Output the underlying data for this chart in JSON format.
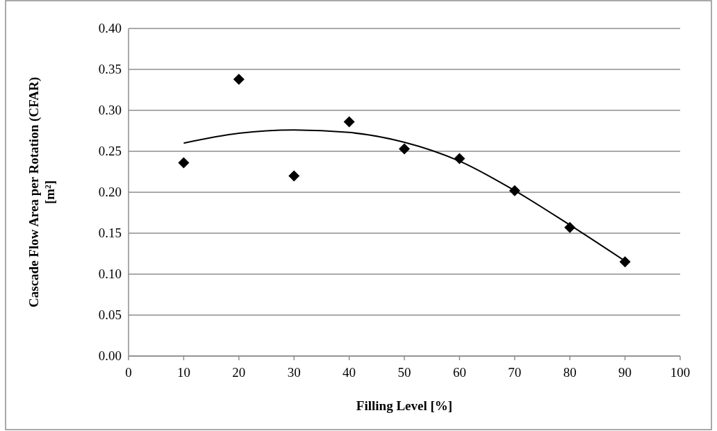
{
  "chart_data": {
    "type": "scatter",
    "xlabel": "Filling Level [%]",
    "ylabel": "Cascade Flow Area per Rotation (CFAR)\n[m²]",
    "x": [
      10,
      20,
      30,
      40,
      50,
      60,
      70,
      80,
      90
    ],
    "series": [
      {
        "color": "#000000",
        "marker": "diamond",
        "values": [
          0.236,
          0.338,
          0.22,
          0.286,
          0.253,
          0.241,
          0.202,
          0.157,
          0.115
        ]
      },
      {
        "type": "line",
        "color": "#000000",
        "marker": "none",
        "x": [
          10,
          20,
          30,
          40,
          50,
          60,
          70,
          80,
          90
        ],
        "values": [
          0.26,
          0.272,
          0.276,
          0.273,
          0.261,
          0.238,
          0.202,
          0.16,
          0.116
        ]
      }
    ],
    "xlim": [
      0,
      100
    ],
    "xticks": [
      0,
      10,
      20,
      30,
      40,
      50,
      60,
      70,
      80,
      90,
      100
    ],
    "ylim": [
      0,
      0.4
    ],
    "yticks": [
      {
        "value": 0,
        "label": "0.00"
      },
      {
        "value": 0.05,
        "label": "0.05"
      },
      {
        "value": 0.1,
        "label": "0.10"
      },
      {
        "value": 0.15,
        "label": "0.15"
      },
      {
        "value": 0.2,
        "label": "0.20"
      },
      {
        "value": 0.25,
        "label": "0.25"
      },
      {
        "value": 0.3,
        "label": "0.30"
      },
      {
        "value": 0.35,
        "label": "0.35"
      },
      {
        "value": 0.4,
        "label": "0.40"
      }
    ],
    "grid": "y"
  }
}
